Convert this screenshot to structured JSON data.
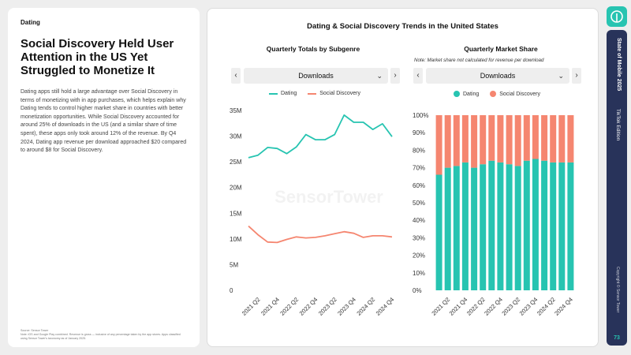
{
  "left": {
    "section": "Dating",
    "headline": "Social Discovery Held User Attention in the US Yet Struggled to Monetize It",
    "body": "Dating apps still hold a large advantage over Social Discovery in terms of monetizing with in app purchases, which helps explain why Dating tends to control higher market share in countries with better monetization opportunities. While Social Discovery accounted for around 25% of downloads in the US (and a similar share of time spent), these apps only took around 12% of the revenue. By Q4 2024, Dating app revenue per download approached $20 compared to around $8 for Social Discovery.",
    "source_title": "Source: Sensor Tower",
    "source_note": "Note: iOS and Google Play combined. Revenue is gross — inclusive of any percentage taken by the app stores. Apps classified using Sensor Tower's taxonomy as of January 2025."
  },
  "main": {
    "title": "Dating & Social Discovery Trends in the United States",
    "watermark": "SensorTower",
    "left_panel": {
      "title": "Quarterly Totals by Subgenre",
      "dropdown_value": "Downloads",
      "prev_label": "‹",
      "next_label": "›"
    },
    "right_panel": {
      "title": "Quarterly Market Share",
      "note": "Note: Market share not calculated for revenue per download",
      "dropdown_value": "Downloads",
      "prev_label": "‹",
      "next_label": "›"
    }
  },
  "colors": {
    "dating": "#27c4b1",
    "social_discovery": "#f58670"
  },
  "chart_data": [
    {
      "type": "line",
      "title": "Quarterly Totals by Subgenre",
      "x": [
        "2021 Q1",
        "2021 Q2",
        "2021 Q3",
        "2021 Q4",
        "2022 Q1",
        "2022 Q2",
        "2022 Q3",
        "2022 Q4",
        "2023 Q1",
        "2023 Q2",
        "2023 Q3",
        "2023 Q4",
        "2024 Q1",
        "2024 Q2",
        "2024 Q3",
        "2024 Q4"
      ],
      "x_tick_labels": [
        "2021 Q2",
        "2021 Q4",
        "2022 Q2",
        "2022 Q4",
        "2023 Q2",
        "2023 Q4",
        "2024 Q2",
        "2024 Q4"
      ],
      "series": [
        {
          "name": "Dating",
          "values": [
            25.8,
            26.3,
            27.8,
            27.6,
            26.6,
            27.9,
            30.3,
            29.3,
            29.3,
            30.3,
            34.1,
            32.7,
            32.7,
            31.3,
            32.4,
            29.9
          ]
        },
        {
          "name": "Social Discovery",
          "values": [
            12.5,
            10.8,
            9.4,
            9.3,
            9.9,
            10.4,
            10.2,
            10.3,
            10.6,
            11.0,
            11.4,
            11.1,
            10.3,
            10.6,
            10.6,
            10.4
          ]
        }
      ],
      "y_tick_labels": [
        "0",
        "5M",
        "10M",
        "15M",
        "20M",
        "25M",
        "30M",
        "35M"
      ],
      "ylim": [
        0,
        35
      ],
      "unit": "M",
      "grid": false,
      "legend": "top"
    },
    {
      "type": "bar",
      "title": "Quarterly Market Share",
      "stacked": true,
      "x": [
        "2021 Q1",
        "2021 Q2",
        "2021 Q3",
        "2021 Q4",
        "2022 Q1",
        "2022 Q2",
        "2022 Q3",
        "2022 Q4",
        "2023 Q1",
        "2023 Q2",
        "2023 Q3",
        "2023 Q4",
        "2024 Q1",
        "2024 Q2",
        "2024 Q3",
        "2024 Q4"
      ],
      "x_tick_labels": [
        "2021 Q2",
        "2021 Q4",
        "2022 Q2",
        "2022 Q4",
        "2023 Q2",
        "2023 Q4",
        "2024 Q2",
        "2024 Q4"
      ],
      "series": [
        {
          "name": "Dating",
          "values": [
            66,
            70,
            71,
            73,
            70,
            72,
            74,
            73,
            72,
            71,
            74,
            75,
            74,
            73,
            73,
            73
          ]
        },
        {
          "name": "Social Discovery",
          "values": [
            34,
            30,
            29,
            27,
            30,
            28,
            26,
            27,
            28,
            29,
            26,
            25,
            26,
            27,
            27,
            27
          ]
        }
      ],
      "y_tick_labels": [
        "0%",
        "10%",
        "20%",
        "30%",
        "40%",
        "50%",
        "60%",
        "70%",
        "80%",
        "90%",
        "100%"
      ],
      "ylim": [
        0,
        100
      ],
      "grid": false,
      "legend": "top"
    }
  ],
  "rail": {
    "title": "State of Mobile 2025",
    "edition": "TikTok Edition",
    "copyright": "Copyright © Sensor Tower",
    "page": "73"
  }
}
